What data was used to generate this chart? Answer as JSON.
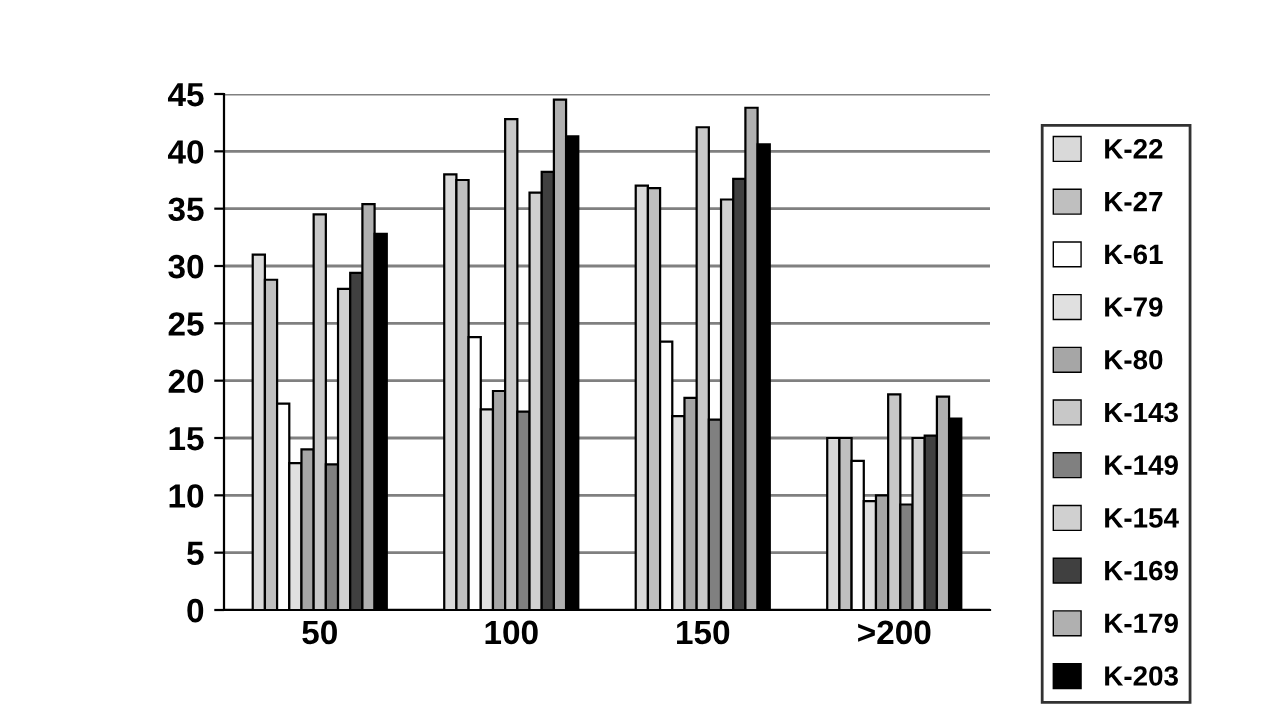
{
  "chart_data": {
    "type": "bar",
    "categories": [
      "50",
      "100",
      "150",
      ">200"
    ],
    "ylim": [
      0,
      45
    ],
    "yticks": [
      0,
      5,
      10,
      15,
      20,
      25,
      30,
      35,
      40,
      45
    ],
    "grid": "y",
    "legend": "right",
    "series": [
      {
        "name": "K-22",
        "color": "#d9d9d9",
        "values": [
          31,
          38,
          37,
          15
        ]
      },
      {
        "name": "K-27",
        "color": "#bfbfbf",
        "values": [
          28.8,
          37.5,
          36.8,
          15
        ]
      },
      {
        "name": "K-61",
        "color": "#ffffff",
        "values": [
          18,
          23.8,
          23.4,
          13
        ]
      },
      {
        "name": "K-79",
        "color": "#e0e0e0",
        "values": [
          12.8,
          17.5,
          16.9,
          9.5
        ]
      },
      {
        "name": "K-80",
        "color": "#a6a6a6",
        "values": [
          14,
          19.1,
          18.5,
          10
        ]
      },
      {
        "name": "K-143",
        "color": "#c8c8c8",
        "values": [
          34.5,
          42.8,
          42.1,
          18.8
        ]
      },
      {
        "name": "K-149",
        "color": "#808080",
        "values": [
          12.7,
          17.3,
          16.6,
          9.2
        ]
      },
      {
        "name": "K-154",
        "color": "#d0d0d0",
        "values": [
          28,
          36.4,
          35.8,
          15
        ]
      },
      {
        "name": "K-169",
        "color": "#404040",
        "values": [
          29.4,
          38.2,
          37.6,
          15.2
        ]
      },
      {
        "name": "K-179",
        "color": "#b0b0b0",
        "values": [
          35.4,
          44.5,
          43.8,
          18.6
        ]
      },
      {
        "name": "K-203",
        "color": "#000000",
        "values": [
          32.8,
          41.3,
          40.6,
          16.7
        ]
      }
    ]
  }
}
